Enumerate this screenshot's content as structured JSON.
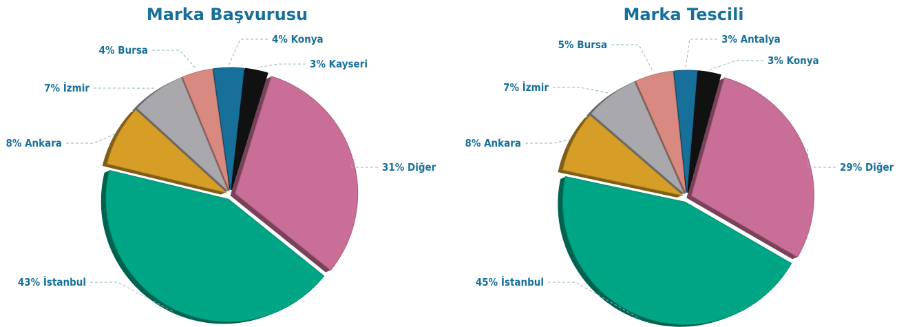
{
  "chart_data": [
    {
      "type": "pie",
      "title": "Marka Başvurusu",
      "categories": [
        "Konya",
        "Kayseri",
        "Diğer",
        "İstanbul",
        "Ankara",
        "İzmir",
        "Bursa"
      ],
      "values": [
        4,
        3,
        31,
        43,
        8,
        7,
        4
      ],
      "value_labels": [
        "4%",
        "3%",
        "31%",
        "43%",
        "8%",
        "7%",
        "4%"
      ],
      "colors": [
        "#17709a",
        "#111111",
        "#c96e96",
        "#00a585",
        "#d69e27",
        "#a9a9ad",
        "#d98a80"
      ]
    },
    {
      "type": "pie",
      "title": "Marka Tescili",
      "categories": [
        "Antalya",
        "Konya",
        "Diğer",
        "İstanbul",
        "Ankara",
        "İzmir",
        "Bursa"
      ],
      "values": [
        3,
        3,
        29,
        45,
        8,
        7,
        5
      ],
      "value_labels": [
        "3%",
        "3%",
        "29%",
        "45%",
        "8%",
        "7%",
        "5%"
      ],
      "colors": [
        "#17709a",
        "#111111",
        "#c96e96",
        "#00a585",
        "#d69e27",
        "#a9a9ad",
        "#d98a80"
      ]
    }
  ]
}
